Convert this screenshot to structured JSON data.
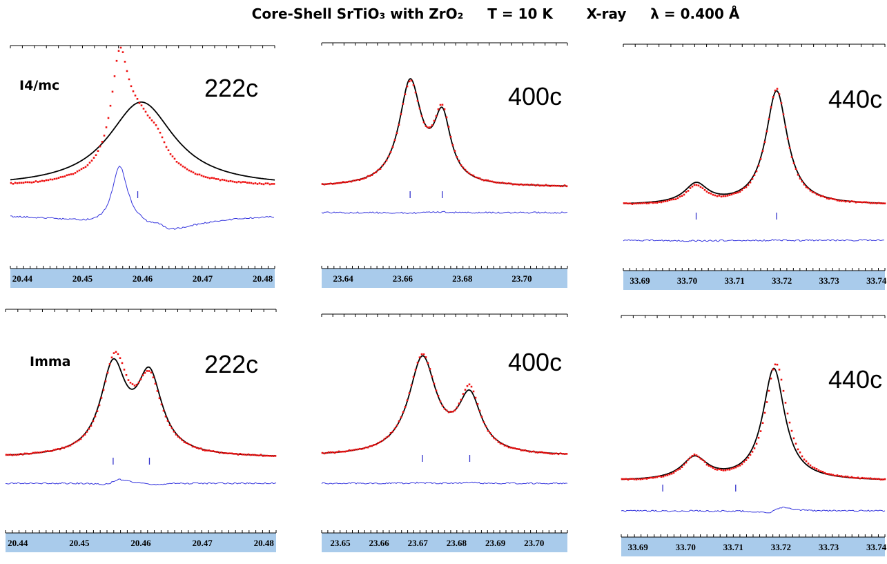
{
  "figure": {
    "title": "Core-Shell SrTiO₃ with ZrO₂     T = 10 K       X-ray     λ = 0.400 Å"
  },
  "colors": {
    "observed": "#ee1111",
    "calculated": "#000000",
    "difference": "#3333dd",
    "reflection_ticks": "#3333cc",
    "axis_band": "#a9cbeb"
  },
  "chart_data": [
    {
      "type": "scatter",
      "phase_label": "I4/mc",
      "peak_label": "222c",
      "x_ticks": [
        "20.44",
        "20.45",
        "20.46",
        "20.47",
        "20.48"
      ],
      "xlim": [
        20.438,
        20.482
      ],
      "reflections": [
        20.4592
      ],
      "series": [
        {
          "role": "observed",
          "peaks": [
            {
              "x": 20.4562,
              "h": 0.95,
              "w": 0.0016
            },
            {
              "x": 20.4592,
              "h": 0.65,
              "w": 0.0045
            },
            {
              "x": 20.4625,
              "h": 0.12,
              "w": 0.0015
            }
          ]
        },
        {
          "role": "calculated",
          "peaks": [
            {
              "x": 20.4598,
              "h": 0.86,
              "w": 0.0067
            }
          ]
        }
      ]
    },
    {
      "type": "scatter",
      "phase_label": "",
      "peak_label": "400c",
      "x_ticks": [
        "23.64",
        "23.66",
        "23.68",
        "23.70"
      ],
      "xlim": [
        23.6328,
        23.7153
      ],
      "reflections": [
        23.6625,
        23.6733
      ],
      "series": [
        {
          "role": "observed",
          "peaks": [
            {
              "x": 23.6625,
              "h": 0.93,
              "w": 0.0045
            },
            {
              "x": 23.6733,
              "h": 0.63,
              "w": 0.0035
            }
          ]
        },
        {
          "role": "calculated",
          "peaks": [
            {
              "x": 23.6625,
              "h": 0.95,
              "w": 0.0045
            },
            {
              "x": 23.6733,
              "h": 0.6,
              "w": 0.0035
            }
          ]
        }
      ]
    },
    {
      "type": "scatter",
      "phase_label": "",
      "peak_label": "440c",
      "x_ticks": [
        "33.69",
        "33.70",
        "33.71",
        "33.72",
        "33.73",
        "33.74"
      ],
      "xlim": [
        33.6865,
        33.7418
      ],
      "reflections": [
        33.7019,
        33.7189
      ],
      "series": [
        {
          "role": "observed",
          "peaks": [
            {
              "x": 33.7019,
              "h": 0.15,
              "w": 0.0025
            },
            {
              "x": 33.7189,
              "h": 1.0,
              "w": 0.0027
            }
          ]
        },
        {
          "role": "calculated",
          "peaks": [
            {
              "x": 33.7019,
              "h": 0.17,
              "w": 0.003
            },
            {
              "x": 33.7189,
              "h": 0.98,
              "w": 0.0028
            }
          ]
        }
      ]
    },
    {
      "type": "scatter",
      "phase_label": "Imma",
      "peak_label": "222c",
      "x_ticks": [
        "20.44",
        "20.45",
        "20.46",
        "20.47",
        "20.48"
      ],
      "xlim": [
        20.438,
        20.482
      ],
      "reflections": [
        20.4555,
        20.4614
      ],
      "series": [
        {
          "role": "observed",
          "peaks": [
            {
              "x": 20.4558,
              "h": 0.95,
              "w": 0.0025
            },
            {
              "x": 20.4614,
              "h": 0.72,
              "w": 0.0025
            }
          ]
        },
        {
          "role": "calculated",
          "peaks": [
            {
              "x": 20.4555,
              "h": 0.88,
              "w": 0.0025
            },
            {
              "x": 20.4614,
              "h": 0.78,
              "w": 0.0025
            }
          ]
        }
      ]
    },
    {
      "type": "scatter",
      "phase_label": "",
      "peak_label": "400c",
      "x_ticks": [
        "23.65",
        "23.66",
        "23.67",
        "23.68",
        "23.69",
        "23.70"
      ],
      "xlim": [
        23.6452,
        23.7086
      ],
      "reflections": [
        23.6712,
        23.6834
      ],
      "series": [
        {
          "role": "observed",
          "peaks": [
            {
              "x": 23.6712,
              "h": 0.97,
              "w": 0.0043
            },
            {
              "x": 23.6834,
              "h": 0.6,
              "w": 0.0033
            }
          ]
        },
        {
          "role": "calculated",
          "peaks": [
            {
              "x": 23.6712,
              "h": 0.95,
              "w": 0.0043
            },
            {
              "x": 23.6834,
              "h": 0.55,
              "w": 0.0036
            }
          ]
        }
      ]
    },
    {
      "type": "scatter",
      "phase_label": "",
      "peak_label": "440c",
      "x_ticks": [
        "33.69",
        "33.70",
        "33.71",
        "33.72",
        "33.73",
        "33.74"
      ],
      "xlim": [
        33.6865,
        33.7418
      ],
      "reflections": [
        33.6952,
        33.7105
      ],
      "series": [
        {
          "role": "observed",
          "peaks": [
            {
              "x": 33.7019,
              "h": 0.2,
              "w": 0.0028
            },
            {
              "x": 33.719,
              "h": 1.0,
              "w": 0.0028
            }
          ]
        },
        {
          "role": "calculated",
          "peaks": [
            {
              "x": 33.7019,
              "h": 0.19,
              "w": 0.0033
            },
            {
              "x": 33.7185,
              "h": 0.96,
              "w": 0.0028
            }
          ]
        }
      ]
    }
  ]
}
